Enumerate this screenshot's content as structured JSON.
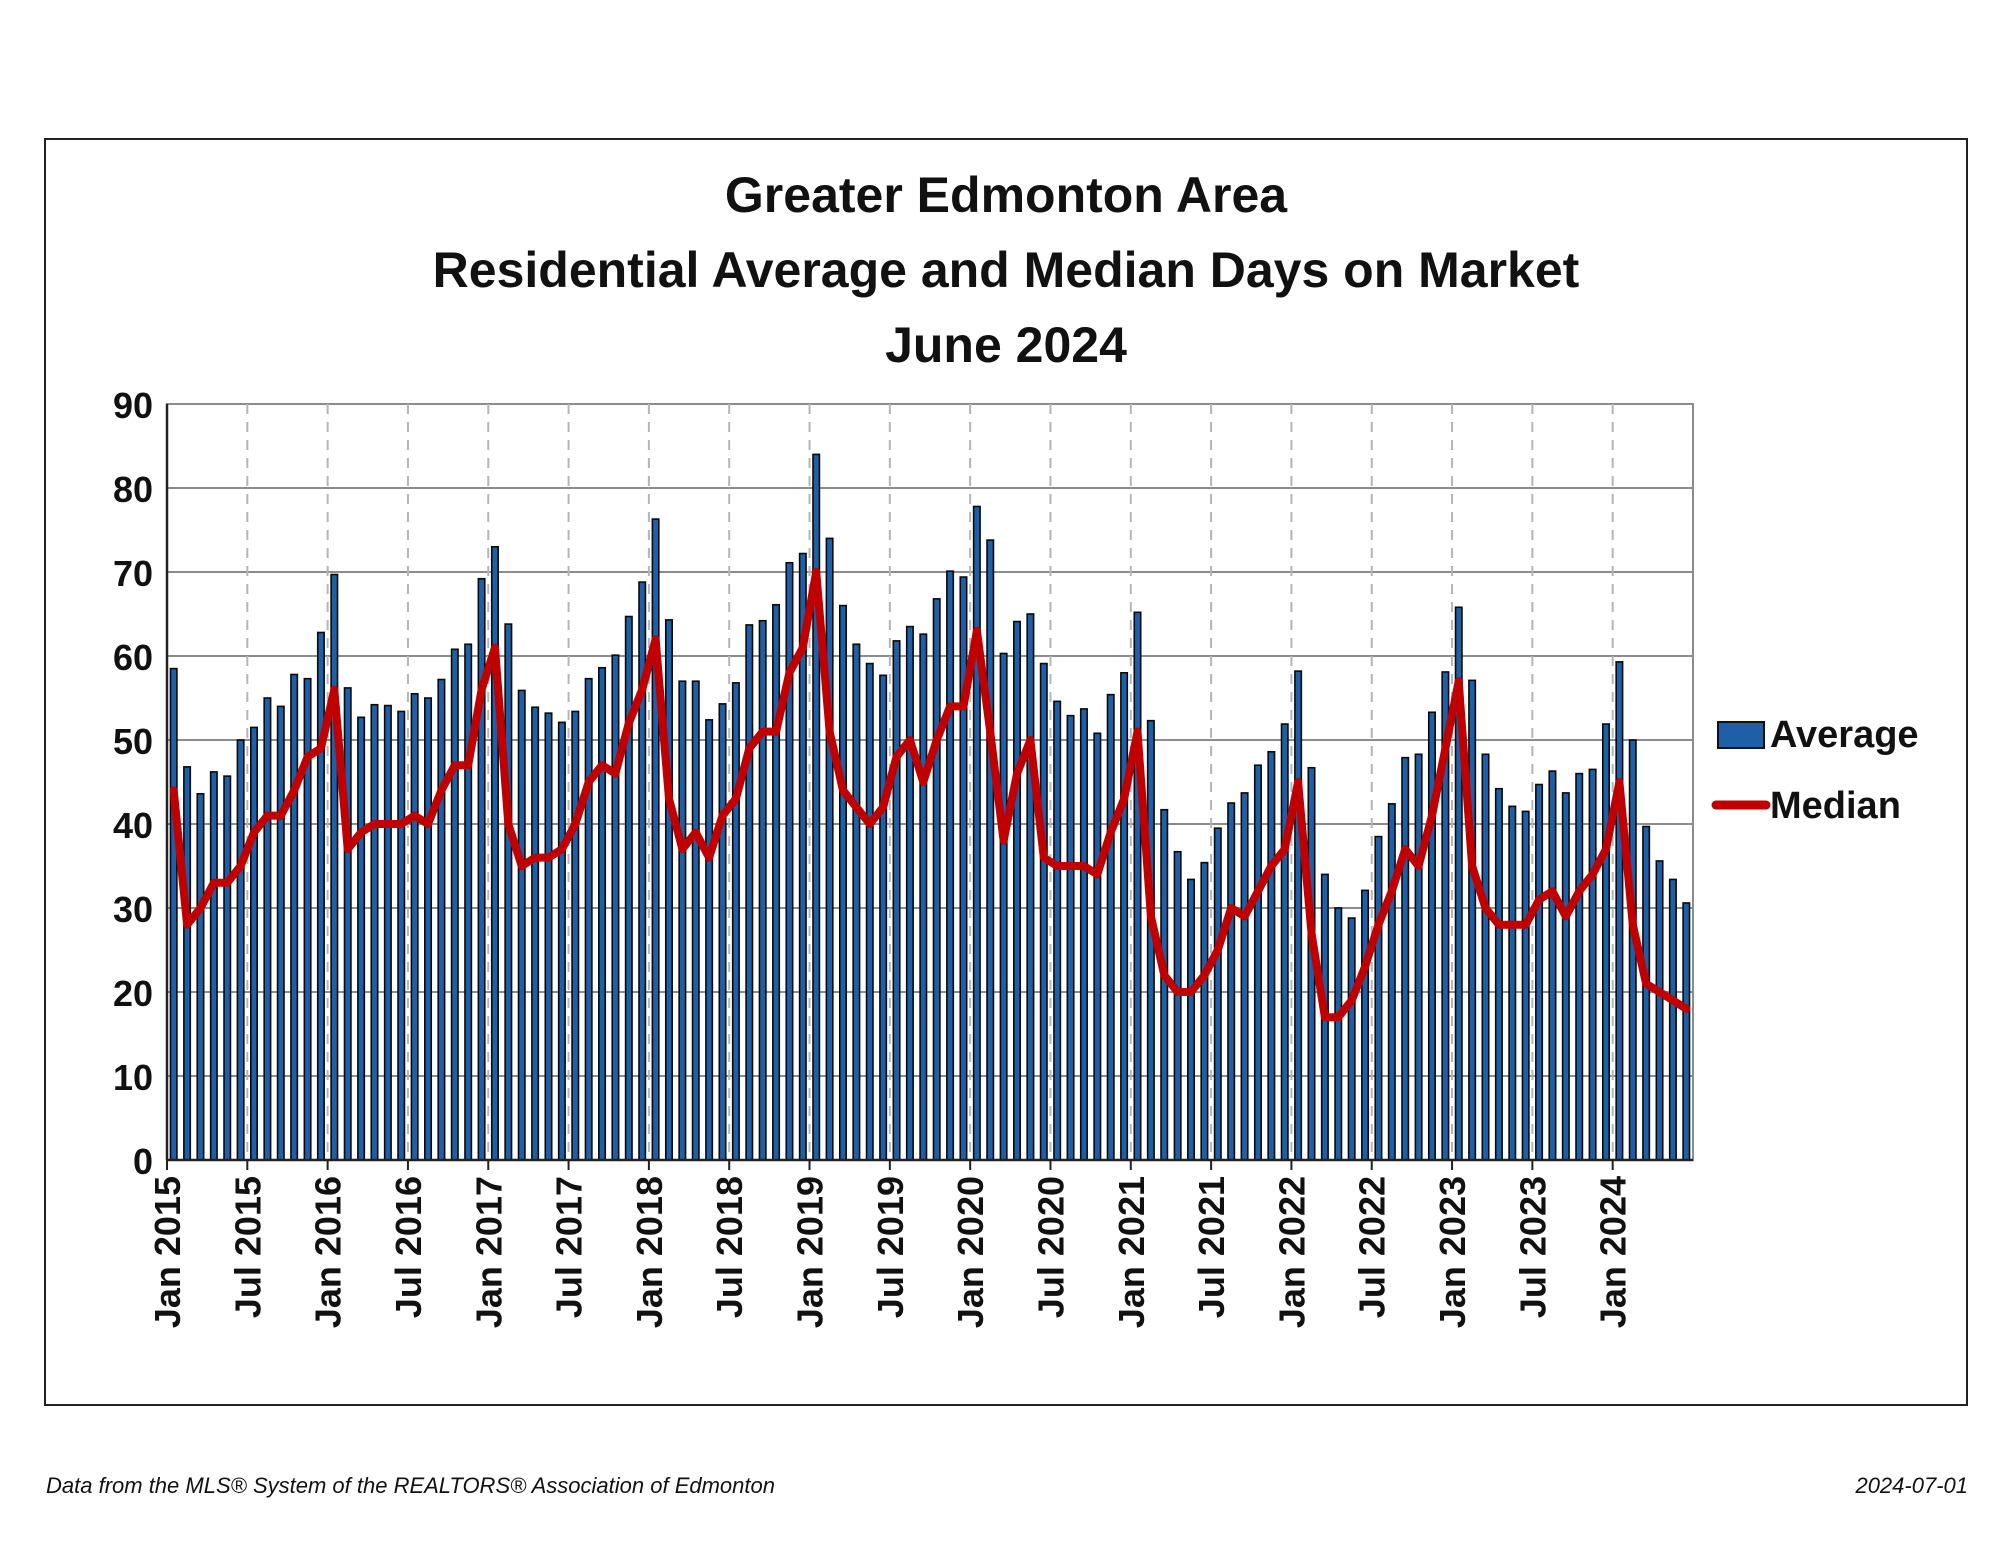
{
  "chart_data": {
    "type": "bar",
    "title": [
      "Greater Edmonton Area",
      "Residential Average and Median Days on Market",
      "June 2024"
    ],
    "ylim": [
      0,
      90
    ],
    "y_ticks": [
      0,
      10,
      20,
      30,
      40,
      50,
      60,
      70,
      80,
      90
    ],
    "x_tick_labels": [
      "Jan 2015",
      "Jul 2015",
      "Jan 2016",
      "Jul 2016",
      "Jan 2017",
      "Jul 2017",
      "Jan 2018",
      "Jul 2018",
      "Jan 2019",
      "Jul 2019",
      "Jan 2020",
      "Jul 2020",
      "Jan 2021",
      "Jul 2021",
      "Jan 2022",
      "Jul 2022",
      "Jan 2023",
      "Jul 2023",
      "Jan 2024"
    ],
    "x_start": "Jan 2015",
    "x_end": "Jun 2024",
    "grid": "both",
    "legend_position": "right",
    "series": [
      {
        "name": "Average",
        "type": "bar",
        "color": "#1f5fa8",
        "values": [
          58.5,
          46.8,
          43.6,
          46.2,
          45.7,
          50.0,
          51.5,
          55.0,
          54.0,
          57.8,
          57.3,
          62.8,
          69.7,
          56.2,
          52.7,
          54.2,
          54.1,
          53.4,
          55.5,
          55.0,
          57.2,
          60.8,
          61.4,
          69.2,
          73.0,
          63.8,
          55.9,
          53.9,
          53.2,
          52.1,
          53.4,
          57.3,
          58.6,
          60.1,
          64.7,
          68.8,
          76.3,
          64.3,
          57.0,
          57.0,
          52.4,
          54.3,
          56.8,
          63.7,
          64.2,
          66.1,
          71.1,
          72.2,
          84.0,
          74.0,
          66.0,
          61.4,
          59.1,
          57.7,
          61.8,
          63.5,
          62.6,
          66.8,
          70.1,
          69.4,
          77.8,
          73.8,
          60.3,
          64.1,
          65.0,
          59.1,
          54.6,
          52.9,
          53.7,
          50.8,
          55.4,
          58.0,
          65.2,
          52.3,
          41.7,
          36.7,
          33.4,
          35.4,
          39.5,
          42.5,
          43.7,
          47.0,
          48.6,
          51.9,
          58.2,
          46.7,
          34.0,
          30.0,
          28.8,
          32.1,
          38.5,
          42.4,
          47.9,
          48.3,
          53.3,
          58.1,
          65.8,
          57.1,
          48.3,
          44.2,
          42.1,
          41.5,
          44.7,
          46.3,
          43.7,
          46.0,
          46.5,
          51.9,
          59.3,
          50.0,
          39.7,
          35.6,
          33.4,
          30.6
        ]
      },
      {
        "name": "Median",
        "type": "line",
        "color": "#c00000",
        "values": [
          44,
          28,
          30,
          33,
          33,
          35,
          39,
          41,
          41,
          44,
          48,
          49,
          56,
          37,
          39,
          40,
          40,
          40,
          41,
          40,
          44,
          47,
          47,
          56,
          61,
          40,
          35,
          36,
          36,
          37,
          40,
          45,
          47,
          46,
          52,
          56,
          62,
          43,
          37,
          39,
          36,
          41,
          43,
          49,
          51,
          51,
          58,
          61,
          70,
          51,
          44,
          42,
          40,
          42,
          48,
          50,
          45,
          50,
          54,
          54,
          63,
          51,
          38,
          46,
          50,
          36,
          35,
          35,
          35,
          34,
          39,
          43,
          51,
          29,
          22,
          20,
          20,
          22,
          25,
          30,
          29,
          32,
          35,
          37,
          45,
          27,
          17,
          17,
          19,
          23,
          28,
          32,
          37,
          35,
          41,
          49,
          57,
          35,
          30,
          28,
          28,
          28,
          31,
          32,
          29,
          32,
          34,
          37,
          45,
          28,
          21,
          20,
          19,
          18
        ]
      }
    ]
  },
  "footer": {
    "source": "Data from the MLS® System of the REALTORS® Association of Edmonton",
    "date": "2024-07-01"
  },
  "colors": {
    "bar_fill": "#1f5fa8",
    "bar_stroke": "#0a0a0a",
    "median_line": "#c00000",
    "grid_major": "#8c8c8c",
    "grid_vertical": "#b5b5b5"
  }
}
